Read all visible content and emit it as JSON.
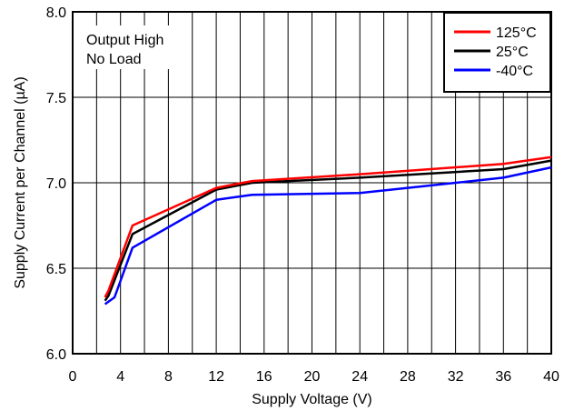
{
  "chart_data": {
    "type": "line",
    "xlabel": "Supply Voltage (V)",
    "ylabel": "Supply Current per Channel (µA)",
    "xlim": [
      0,
      40
    ],
    "ylim": [
      6.0,
      8.0
    ],
    "xticks": [
      0,
      4,
      8,
      12,
      16,
      20,
      24,
      28,
      32,
      36,
      40
    ],
    "xtick_labels": [
      "0",
      "4",
      "8",
      "12",
      "16",
      "20",
      "24",
      "28",
      "32",
      "36",
      "40"
    ],
    "yticks": [
      6.0,
      6.5,
      7.0,
      7.5,
      8.0
    ],
    "ytick_labels": [
      "6.0",
      "6.5",
      "7.0",
      "7.5",
      "8.0"
    ],
    "x_minor_step": 2,
    "grid": true,
    "legend_position": "top-right",
    "annotation": [
      "Output High",
      "No Load"
    ],
    "series": [
      {
        "name": "125°C",
        "color": "#ff0000",
        "x": [
          2.7,
          3.0,
          5.0,
          12.0,
          15.0,
          24.0,
          36.0,
          40.0
        ],
        "y": [
          6.33,
          6.37,
          6.75,
          6.97,
          7.01,
          7.05,
          7.11,
          7.15
        ]
      },
      {
        "name": "25°C",
        "color": "#000000",
        "x": [
          2.7,
          3.0,
          5.0,
          12.0,
          15.0,
          24.0,
          36.0,
          40.0
        ],
        "y": [
          6.31,
          6.34,
          6.7,
          6.96,
          7.0,
          7.03,
          7.08,
          7.13
        ]
      },
      {
        "name": "-40°C",
        "color": "#0000ff",
        "x": [
          2.7,
          3.5,
          5.0,
          12.0,
          15.0,
          24.0,
          36.0,
          40.0
        ],
        "y": [
          6.29,
          6.33,
          6.62,
          6.9,
          6.93,
          6.94,
          7.03,
          7.09
        ]
      }
    ]
  }
}
